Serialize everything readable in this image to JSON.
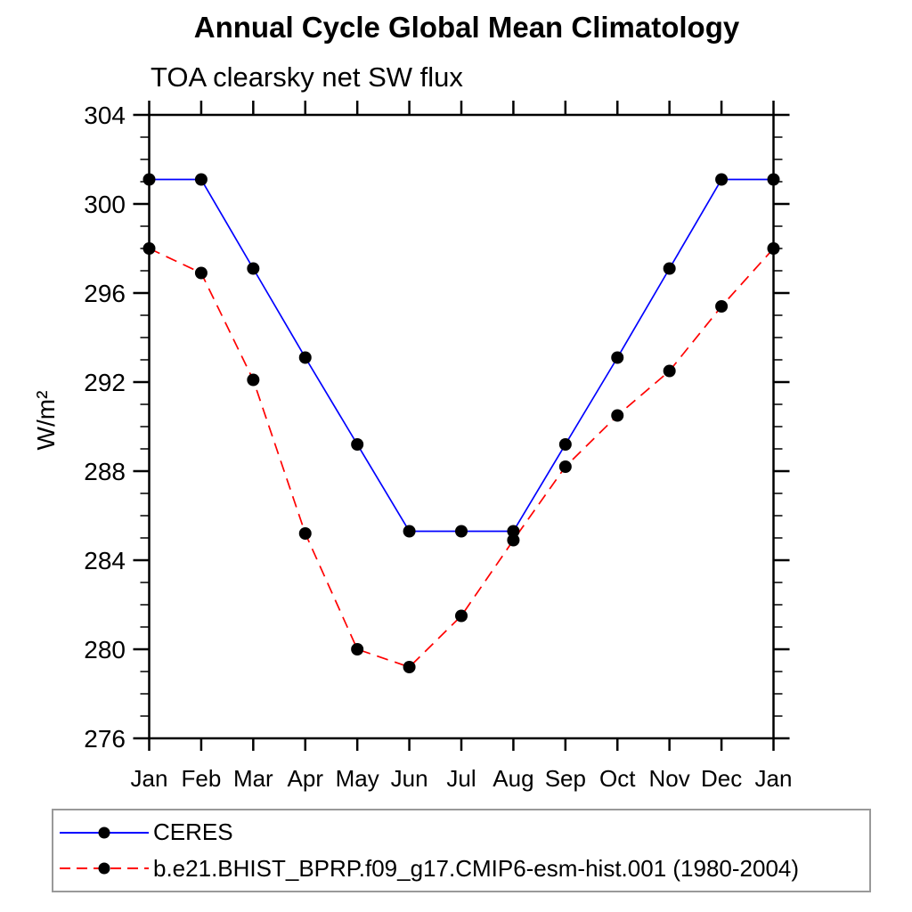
{
  "title": "Annual Cycle Global Mean Climatology",
  "subtitle": "TOA clearsky net SW flux",
  "y_axis_label": "W/m²",
  "colors": {
    "background": "#ffffff",
    "axis": "#000000",
    "marker": "#000000",
    "ceres_line": "#0000ff",
    "model_line": "#ff0000",
    "legend_border": "#999999"
  },
  "chart_data": {
    "type": "line",
    "title": "Annual Cycle Global Mean Climatology",
    "subtitle": "TOA clearsky net SW flux",
    "xlabel": "",
    "ylabel": "W/m²",
    "x_tick_labels": [
      "Jan",
      "Feb",
      "Mar",
      "Apr",
      "May",
      "Jun",
      "Jul",
      "Aug",
      "Sep",
      "Oct",
      "Nov",
      "Dec",
      "Jan"
    ],
    "ylim": [
      276,
      304
    ],
    "y_major_ticks": [
      276,
      280,
      284,
      288,
      292,
      296,
      300,
      304
    ],
    "y_minor_step": 1,
    "grid": false,
    "legend_position": "bottom",
    "series": [
      {
        "name": "CERES",
        "color": "#0000ff",
        "line_style": "solid",
        "marker": "filled-circle",
        "marker_color": "#000000",
        "values": [
          301.1,
          301.1,
          297.1,
          293.1,
          289.2,
          285.3,
          285.3,
          285.3,
          289.2,
          293.1,
          297.1,
          301.1,
          301.1
        ]
      },
      {
        "name": "b.e21.BHIST_BPRP.f09_g17.CMIP6-esm-hist.001 (1980-2004)",
        "color": "#ff0000",
        "line_style": "dashed",
        "marker": "filled-circle",
        "marker_color": "#000000",
        "values": [
          298.0,
          296.9,
          292.1,
          285.2,
          280.0,
          279.2,
          281.5,
          284.9,
          288.2,
          290.5,
          292.5,
          295.4,
          298.0
        ]
      }
    ]
  },
  "legend": {
    "items": [
      {
        "label": "CERES"
      },
      {
        "label": "b.e21.BHIST_BPRP.f09_g17.CMIP6-esm-hist.001 (1980-2004)"
      }
    ]
  }
}
